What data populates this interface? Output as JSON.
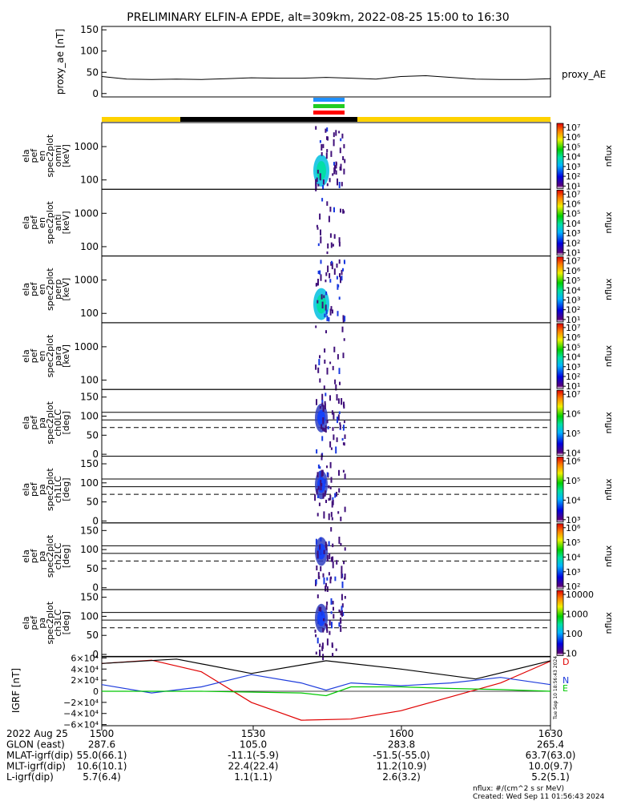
{
  "title": "PRELIMINARY ELFIN-A EPDE, alt=309km, 2022-08-25 15:00 to 16:30",
  "proxy_ae": {
    "ylabel": "proxy_ae [nT]",
    "legend": "proxy_AE",
    "yticks": [
      "150",
      "100",
      "50",
      "0"
    ],
    "ytick_values": [
      150,
      100,
      50,
      0
    ],
    "ylim": [
      -8,
      158
    ]
  },
  "colors": {
    "bar_yellow": "#ffd200",
    "bar_black": "#000000",
    "stripe_blue": "#1e90ff",
    "stripe_green": "#22cc22",
    "stripe_red": "#ff0000",
    "trace_black": "#000000",
    "trace_blue": "#1e3cdc",
    "trace_green": "#00c800",
    "trace_red": "#e00000"
  },
  "panels": [
    {
      "ylabel": [
        "ela",
        "pef",
        "en",
        "spec2plot",
        "omni"
      ],
      "unit": "[keV]",
      "yticks": [
        "1000",
        "100"
      ],
      "cb_label": "nflux",
      "cb_ticks": [
        "10⁷",
        "10⁶",
        "10⁵",
        "10⁴",
        "10³",
        "10²",
        "10¹"
      ]
    },
    {
      "ylabel": [
        "ela",
        "pef",
        "en",
        "spec2plot",
        "anti"
      ],
      "unit": "[keV]",
      "yticks": [
        "1000",
        "100"
      ],
      "cb_label": "nflux",
      "cb_ticks": [
        "10⁷",
        "10⁶",
        "10⁵",
        "10⁴",
        "10³",
        "10²",
        "10¹"
      ]
    },
    {
      "ylabel": [
        "ela",
        "pef",
        "en",
        "spec2plot",
        "perp"
      ],
      "unit": "[keV]",
      "yticks": [
        "1000",
        "100"
      ],
      "cb_label": "nflux",
      "cb_ticks": [
        "10⁷",
        "10⁶",
        "10⁵",
        "10⁴",
        "10³",
        "10²",
        "10¹"
      ]
    },
    {
      "ylabel": [
        "ela",
        "pef",
        "en",
        "spec2plot",
        "para"
      ],
      "unit": "[keV]",
      "yticks": [
        "1000",
        "100"
      ],
      "cb_label": "nflux",
      "cb_ticks": [
        "10⁷",
        "10⁶",
        "10⁵",
        "10⁴",
        "10³",
        "10²",
        "10¹"
      ]
    },
    {
      "ylabel": [
        "ela",
        "pef",
        "pa",
        "spec2plot",
        "ch0LC"
      ],
      "unit": "[deg]",
      "yticks": [
        "150",
        "100",
        "50",
        "0"
      ],
      "cb_label": "nflux",
      "cb_ticks": [
        "10⁷",
        "10⁶",
        "10⁵",
        "10⁴"
      ]
    },
    {
      "ylabel": [
        "ela",
        "pef",
        "pa",
        "spec2plot",
        "ch1LC"
      ],
      "unit": "[deg]",
      "yticks": [
        "150",
        "100",
        "50",
        "0"
      ],
      "cb_label": "nflux",
      "cb_ticks": [
        "10⁶",
        "10⁵",
        "10⁴",
        "10³"
      ]
    },
    {
      "ylabel": [
        "ela",
        "pef",
        "pa",
        "spec2plot",
        "ch2LC"
      ],
      "unit": "[deg]",
      "yticks": [
        "150",
        "100",
        "50",
        "0"
      ],
      "cb_label": "nflux",
      "cb_ticks": [
        "10⁶",
        "10⁵",
        "10⁴",
        "10³",
        "10²"
      ]
    },
    {
      "ylabel": [
        "ela",
        "pef",
        "pa",
        "spec2plot",
        "ch3LC"
      ],
      "unit": "[deg]",
      "yticks": [
        "150",
        "100",
        "50",
        "0"
      ],
      "cb_label": "nflux",
      "cb_ticks": [
        "10000",
        "1000",
        "100",
        "10"
      ]
    }
  ],
  "igrf": {
    "ylabel": "IGRF [nT]",
    "yticks": [
      "6×10⁴",
      "4×10⁴",
      "2×10⁴",
      "0",
      "−2×10⁴",
      "−4×10⁴",
      "−6×10⁴"
    ],
    "ytick_values": [
      60000,
      40000,
      20000,
      0,
      -20000,
      -40000,
      -60000
    ],
    "ylim": [
      -62000,
      62000
    ],
    "legend": [
      "D",
      "N",
      "E"
    ],
    "stamp": "Tue Sep 10 18:56:43 2024"
  },
  "chart_data": {
    "type": "line",
    "title": "PRELIMINARY ELFIN-A EPDE, alt=309km, 2022-08-25 15:00 to 16:30",
    "xlim": [
      "2022-08-25 15:00",
      "2022-08-25 16:30"
    ],
    "series": [
      {
        "name": "proxy_AE",
        "x_min": [
          0,
          5,
          10,
          15,
          20,
          25,
          30,
          35,
          40,
          45,
          50,
          55,
          60,
          65,
          70,
          75,
          80,
          85,
          90
        ],
        "y": [
          40,
          34,
          33,
          34,
          33,
          35,
          37,
          36,
          36,
          38,
          36,
          34,
          40,
          42,
          38,
          34,
          33,
          33,
          35
        ]
      },
      {
        "name": "D",
        "x_min": [
          0,
          10,
          20,
          30,
          40,
          50,
          60,
          70,
          80,
          90
        ],
        "y": [
          50000,
          56000,
          35000,
          -20000,
          -52000,
          -50000,
          -35000,
          -10000,
          15000,
          54000
        ]
      },
      {
        "name": "N",
        "x_min": [
          0,
          10,
          20,
          30,
          40,
          45,
          50,
          60,
          70,
          80,
          90
        ],
        "y": [
          12000,
          -3000,
          8000,
          30000,
          15000,
          2000,
          15000,
          10000,
          15000,
          25000,
          12000
        ]
      },
      {
        "name": "E",
        "x_min": [
          0,
          20,
          40,
          45,
          50,
          60,
          70,
          80,
          90
        ],
        "y": [
          0,
          0,
          -3000,
          -8000,
          8000,
          8000,
          5000,
          3000,
          0
        ]
      },
      {
        "name": "total",
        "x_min": [
          0,
          15,
          30,
          45,
          60,
          75,
          90
        ],
        "y": [
          50000,
          58000,
          32000,
          55000,
          40000,
          22000,
          55000
        ]
      }
    ]
  },
  "footer": {
    "rows": [
      {
        "label": "2022 Aug 25",
        "values": [
          "1500",
          "1530",
          "1600",
          "1630"
        ]
      },
      {
        "label": "GLON (east)",
        "values": [
          "287.6",
          "105.0",
          "283.8",
          "265.4"
        ]
      },
      {
        "label": "MLAT-igrf(dip)",
        "values": [
          "55.0(66.1)",
          "-11.1(-5.9)",
          "-51.5(-55.0)",
          "63.7(63.0)"
        ]
      },
      {
        "label": "MLT-igrf(dip)",
        "values": [
          "10.6(10.1)",
          "22.4(22.4)",
          "11.2(10.9)",
          "10.0(9.7)"
        ]
      },
      {
        "label": "L-igrf(dip)",
        "values": [
          "5.7(6.4)",
          "1.1(1.1)",
          "2.6(3.2)",
          "5.2(5.1)"
        ]
      }
    ],
    "unit_note": "nflux: #/(cm^2 s sr MeV)",
    "created": "Created: Wed Sep 11 01:56:43 2024"
  }
}
